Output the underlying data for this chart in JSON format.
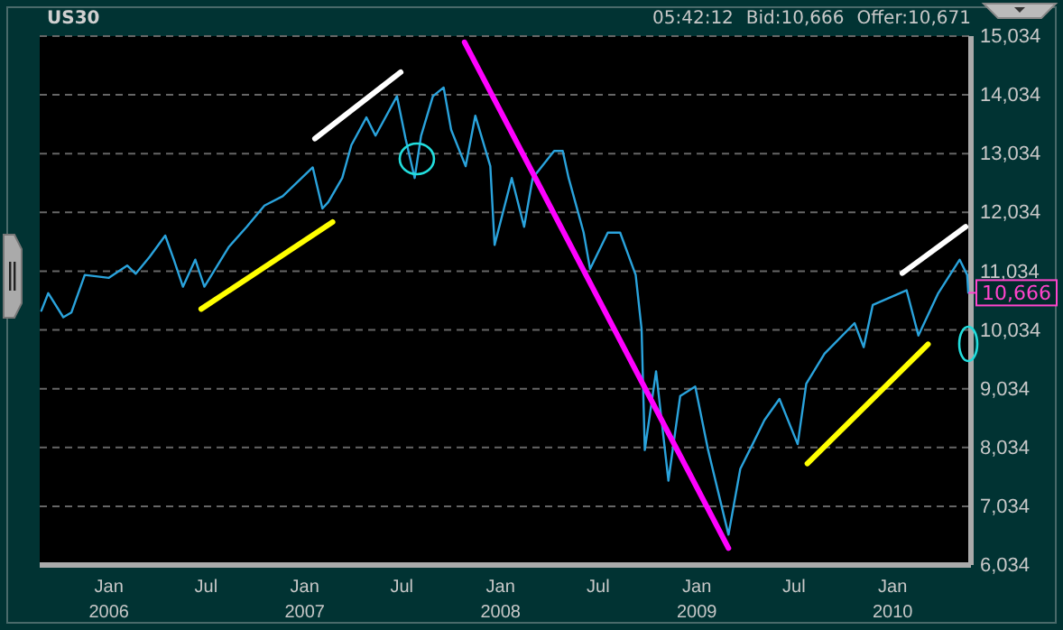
{
  "chart_data": {
    "type": "line",
    "title": "US30",
    "annotations": [
      "05:42:12",
      "Bid:10,666",
      "Offer:10,671",
      {
        "text": "10,666",
        "x": "2010-05-22",
        "y": 10666
      }
    ],
    "xlim": [
      "2005-08-25",
      "2010-05-27"
    ],
    "xticks": [
      {
        "value": "2006-01-01",
        "label": "Jan\n2006"
      },
      {
        "value": "2006-07-01",
        "label": "Jul"
      },
      {
        "value": "2007-01-01",
        "label": "Jan\n2007"
      },
      {
        "value": "2007-07-01",
        "label": "Jul"
      },
      {
        "value": "2008-01-01",
        "label": "Jan\n2008"
      },
      {
        "value": "2008-07-01",
        "label": "Jul"
      },
      {
        "value": "2009-01-01",
        "label": "Jan\n2009"
      },
      {
        "value": "2009-07-01",
        "label": "Jul"
      },
      {
        "value": "2010-01-01",
        "label": "Jan\n2010"
      }
    ],
    "ylim": [
      6034,
      15034
    ],
    "yticks": [
      {
        "value": 6034,
        "label": "6,034"
      },
      {
        "value": 7034,
        "label": "7,034"
      },
      {
        "value": 8034,
        "label": "8,034"
      },
      {
        "value": 9034,
        "label": "9,034"
      },
      {
        "value": 10034,
        "label": "10,034"
      },
      {
        "value": 11034,
        "label": "11,034"
      },
      {
        "value": 12034,
        "label": "12,034"
      },
      {
        "value": 13034,
        "label": "13,034"
      },
      {
        "value": 14034,
        "label": "14,034"
      },
      {
        "value": 15034,
        "label": "15,034"
      }
    ],
    "grid": "y",
    "line_style": "solid",
    "series": [
      {
        "color": "#2aa3dc",
        "x": [
          "2005-08-28",
          "2005-09-10",
          "2005-10-08",
          "2005-10-23",
          "2005-11-17",
          "2006-01-01",
          "2006-02-04",
          "2006-02-20",
          "2006-03-18",
          "2006-04-16",
          "2006-05-02",
          "2006-05-19",
          "2006-06-11",
          "2006-06-28",
          "2006-08-12",
          "2006-09-15",
          "2006-10-18",
          "2006-11-21",
          "2007-01-16",
          "2007-02-03",
          "2007-02-14",
          "2007-03-12",
          "2007-03-29",
          "2007-04-26",
          "2007-05-13",
          "2007-06-22",
          "2007-07-08",
          "2007-07-25",
          "2007-08-06",
          "2007-08-28",
          "2007-09-17",
          "2007-10-01",
          "2007-10-28",
          "2007-11-15",
          "2007-12-13",
          "2007-12-21",
          "2008-01-22",
          "2008-02-14",
          "2008-03-01",
          "2008-04-10",
          "2008-04-26",
          "2008-05-07",
          "2008-06-04",
          "2008-06-16",
          "2008-07-19",
          "2008-08-11",
          "2008-09-09",
          "2008-09-20",
          "2008-09-26",
          "2008-10-17",
          "2008-11-09",
          "2008-12-01",
          "2008-12-29",
          "2009-01-22",
          "2009-03-01",
          "2009-03-23",
          "2009-04-15",
          "2009-05-07",
          "2009-06-04",
          "2009-07-08",
          "2009-07-24",
          "2009-08-27",
          "2009-10-22",
          "2009-11-08",
          "2009-11-25",
          "2010-01-27",
          "2010-02-18",
          "2010-03-27",
          "2010-05-06",
          "2010-05-20",
          "2010-05-22"
        ],
        "values": [
          10360,
          10660,
          10250,
          10330,
          10970,
          10920,
          11130,
          10990,
          11280,
          11640,
          11230,
          10770,
          11230,
          10770,
          11440,
          11790,
          12150,
          12310,
          12800,
          12100,
          12210,
          12620,
          13180,
          13650,
          13340,
          14010,
          13290,
          12620,
          13340,
          14010,
          14160,
          13440,
          12820,
          13680,
          12820,
          11480,
          12620,
          11790,
          12620,
          13080,
          13080,
          12620,
          11690,
          11070,
          11690,
          11690,
          10970,
          10050,
          7990,
          9330,
          7470,
          8910,
          9070,
          7990,
          6550,
          7670,
          8090,
          8500,
          8860,
          8090,
          9120,
          9630,
          10150,
          9740,
          10460,
          10710,
          9940,
          10660,
          11230,
          10970,
          10666
        ]
      },
      {
        "type": "line",
        "color": "#ffff00",
        "x": [
          "2006-06-22",
          "2007-02-22"
        ],
        "values": [
          10390,
          11870
        ]
      },
      {
        "type": "line",
        "color": "#ffffff",
        "x": [
          "2007-01-20",
          "2007-06-29"
        ],
        "values": [
          13290,
          14420
        ]
      },
      {
        "type": "line",
        "color": "#ff00ff",
        "x": [
          "2007-10-26",
          "2009-03-01"
        ],
        "values": [
          14930,
          6320
        ]
      },
      {
        "type": "line",
        "color": "#ffff00",
        "x": [
          "2009-07-26",
          "2010-03-08"
        ],
        "values": [
          7760,
          9790
        ]
      },
      {
        "type": "line",
        "color": "#ffffff",
        "x": [
          "2010-01-19",
          "2010-05-17"
        ],
        "values": [
          11000,
          11790
        ]
      }
    ]
  }
}
